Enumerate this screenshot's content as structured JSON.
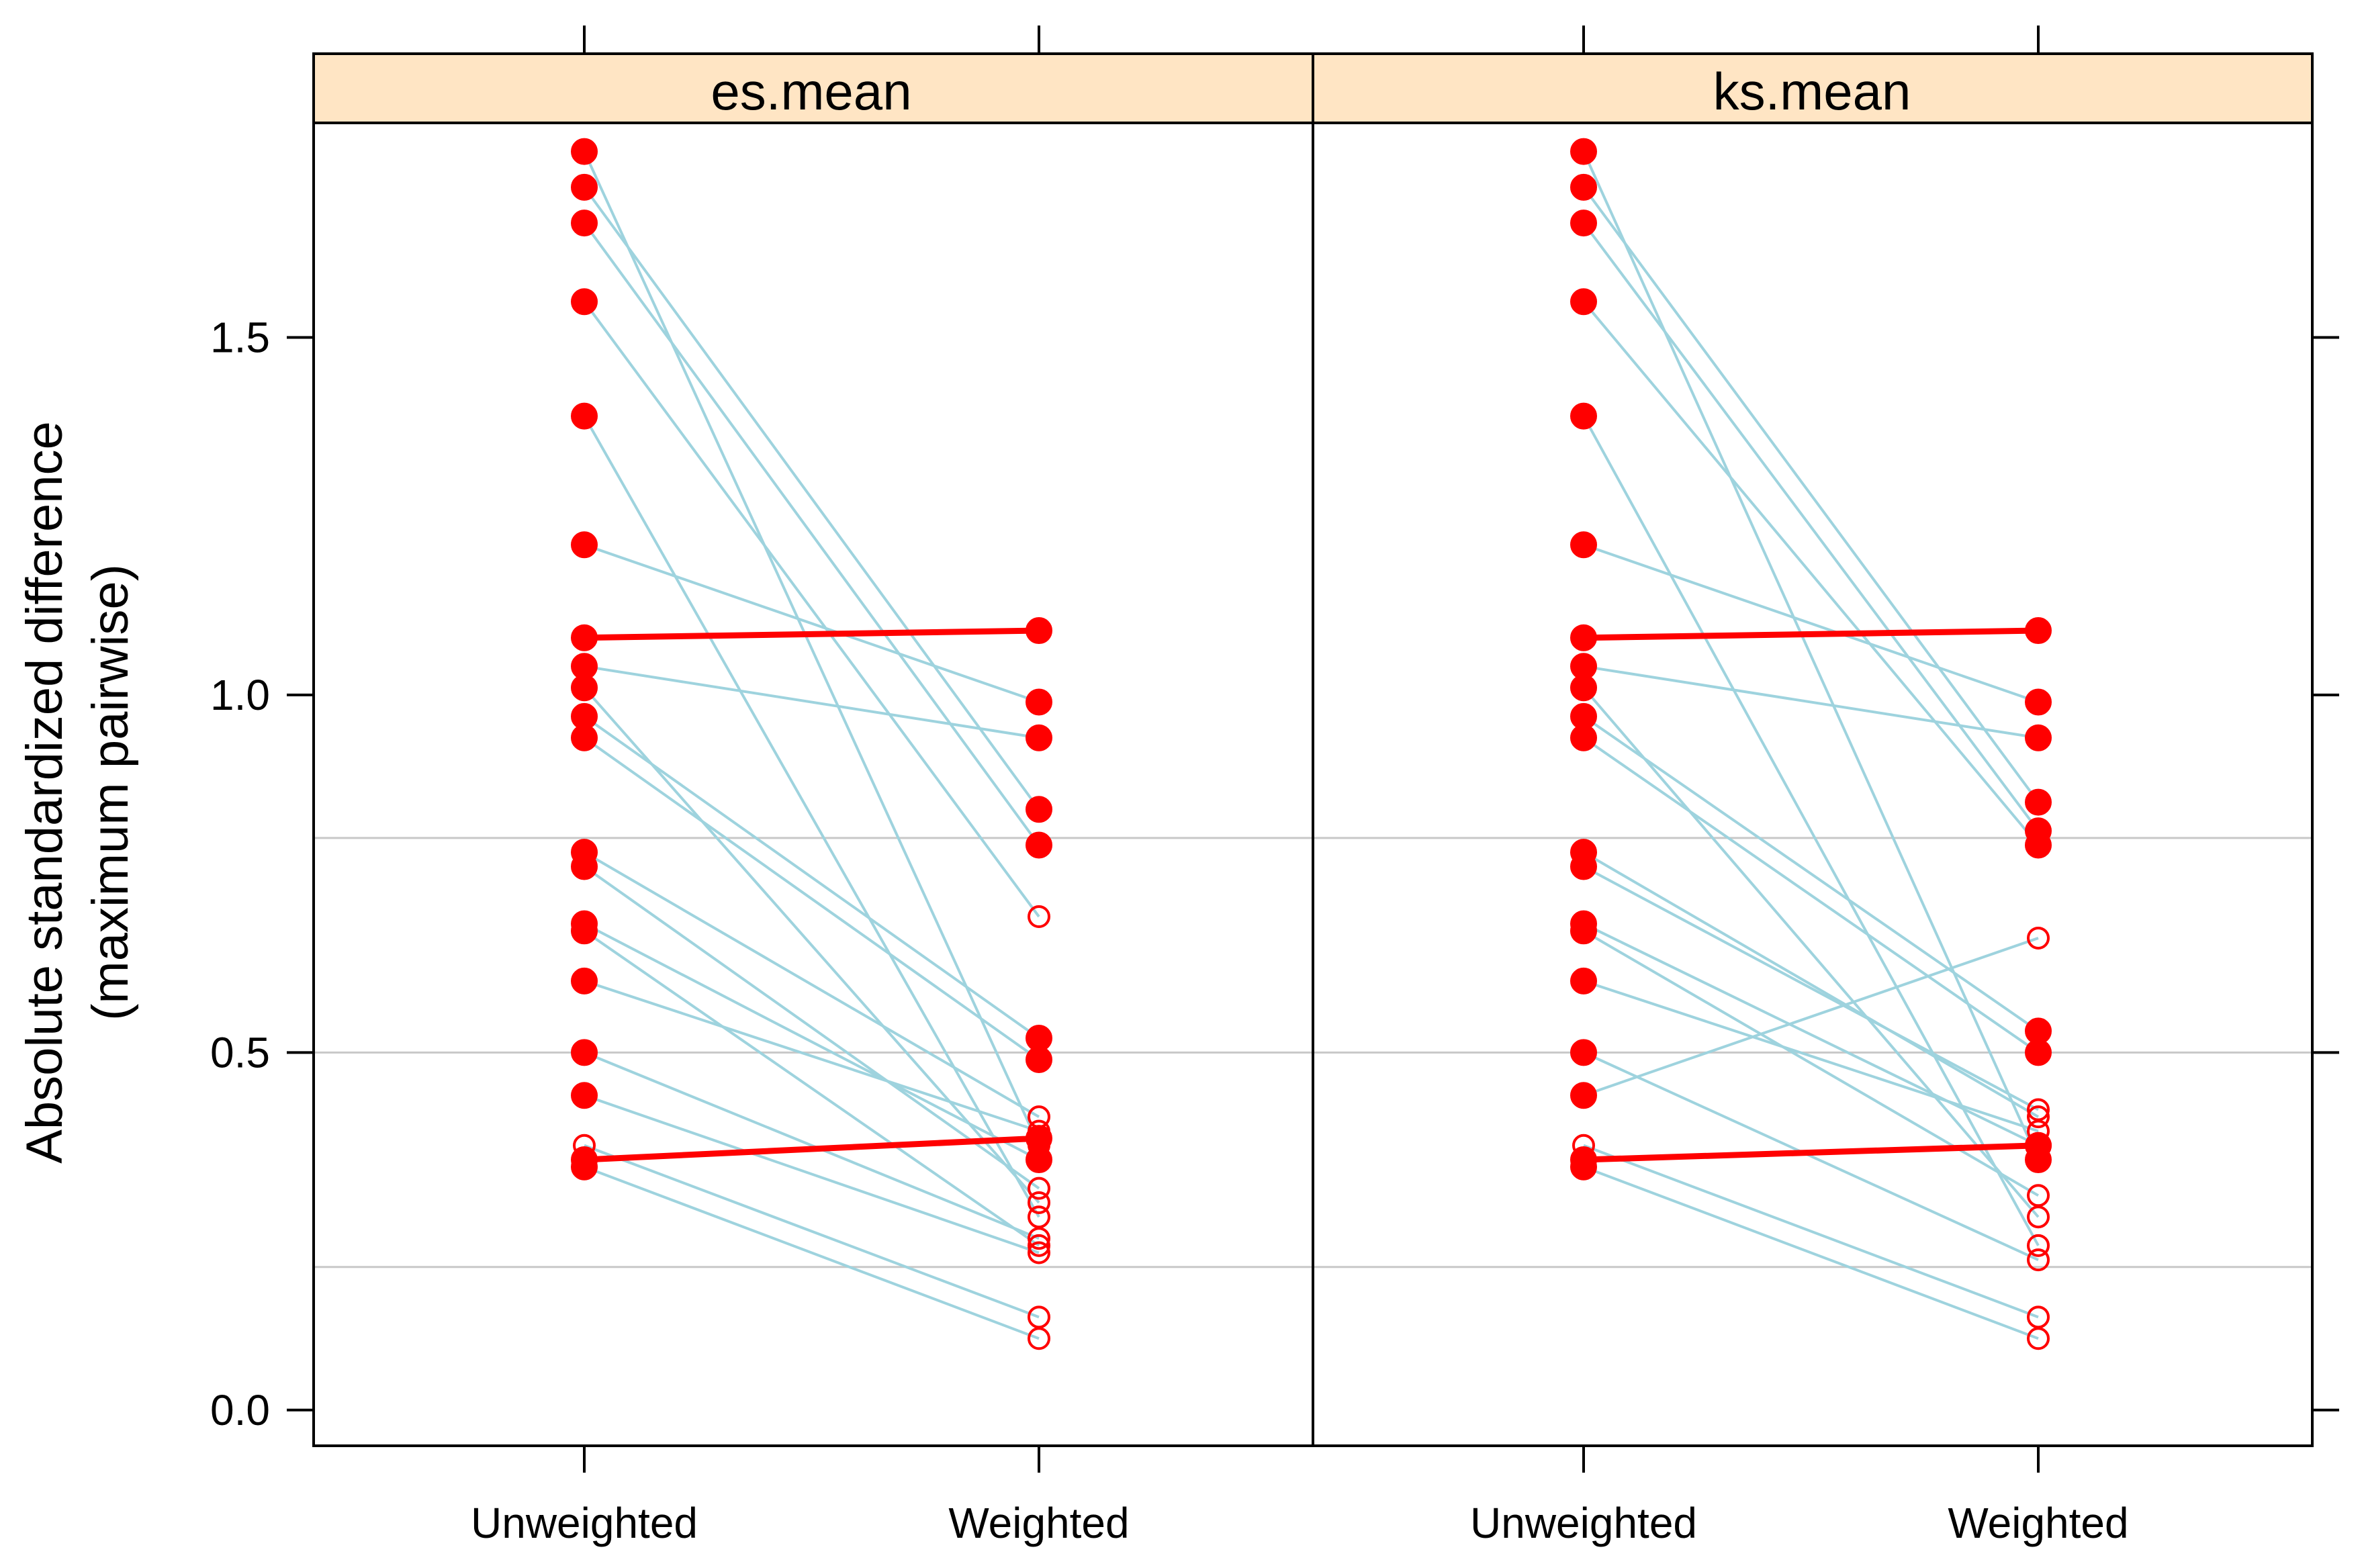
{
  "chart_data": {
    "type": "line",
    "ylabel_line1": "Absolute standardized difference",
    "ylabel_line2": "(maximum pairwise)",
    "ylim": [
      -0.05,
      1.8
    ],
    "yticks": [
      0.0,
      0.5,
      1.0,
      1.5
    ],
    "ytick_labels": [
      "0.0",
      "0.5",
      "1.0",
      "1.5"
    ],
    "reference_lines": [
      0.2,
      0.5,
      0.8
    ],
    "categories": [
      "Unweighted",
      "Weighted"
    ],
    "colors": {
      "strip": "#FFE5C4",
      "line": "#9ED3DE",
      "point": "#FF0000",
      "ref": "#C8C8C8"
    },
    "panels": [
      {
        "title": "es.mean",
        "pairs": [
          {
            "u": 1.76,
            "w": 0.37,
            "u_sig": true,
            "w_sig": false
          },
          {
            "u": 1.71,
            "w": 0.84,
            "u_sig": true,
            "w_sig": true
          },
          {
            "u": 1.66,
            "w": 0.79,
            "u_sig": true,
            "w_sig": true
          },
          {
            "u": 1.55,
            "w": 0.69,
            "u_sig": true,
            "w_sig": false
          },
          {
            "u": 1.39,
            "w": 0.27,
            "u_sig": true,
            "w_sig": false
          },
          {
            "u": 1.21,
            "w": 0.99,
            "u_sig": true,
            "w_sig": true
          },
          {
            "u": 1.08,
            "w": 1.09,
            "u_sig": true,
            "w_sig": true,
            "highlight": true
          },
          {
            "u": 1.04,
            "w": 0.94,
            "u_sig": true,
            "w_sig": true
          },
          {
            "u": 1.01,
            "w": 0.29,
            "u_sig": true,
            "w_sig": false
          },
          {
            "u": 0.97,
            "w": 0.52,
            "u_sig": true,
            "w_sig": true
          },
          {
            "u": 0.94,
            "w": 0.49,
            "u_sig": true,
            "w_sig": true
          },
          {
            "u": 0.78,
            "w": 0.41,
            "u_sig": true,
            "w_sig": false
          },
          {
            "u": 0.76,
            "w": 0.31,
            "u_sig": true,
            "w_sig": false
          },
          {
            "u": 0.68,
            "w": 0.35,
            "u_sig": true,
            "w_sig": true
          },
          {
            "u": 0.67,
            "w": 0.23,
            "u_sig": true,
            "w_sig": false
          },
          {
            "u": 0.6,
            "w": 0.39,
            "u_sig": true,
            "w_sig": false
          },
          {
            "u": 0.5,
            "w": 0.24,
            "u_sig": true,
            "w_sig": false
          },
          {
            "u": 0.44,
            "w": 0.22,
            "u_sig": true,
            "w_sig": false
          },
          {
            "u": 0.37,
            "w": 0.13,
            "u_sig": false,
            "w_sig": false
          },
          {
            "u": 0.35,
            "w": 0.38,
            "u_sig": true,
            "w_sig": true,
            "highlight": true
          },
          {
            "u": 0.34,
            "w": 0.1,
            "u_sig": true,
            "w_sig": false
          }
        ]
      },
      {
        "title": "ks.mean",
        "pairs": [
          {
            "u": 1.76,
            "w": 0.35,
            "u_sig": true,
            "w_sig": true
          },
          {
            "u": 1.71,
            "w": 0.85,
            "u_sig": true,
            "w_sig": true
          },
          {
            "u": 1.66,
            "w": 0.81,
            "u_sig": true,
            "w_sig": true
          },
          {
            "u": 1.55,
            "w": 0.79,
            "u_sig": true,
            "w_sig": true
          },
          {
            "u": 1.39,
            "w": 0.23,
            "u_sig": true,
            "w_sig": false
          },
          {
            "u": 1.21,
            "w": 0.99,
            "u_sig": true,
            "w_sig": true
          },
          {
            "u": 1.08,
            "w": 1.09,
            "u_sig": true,
            "w_sig": true,
            "highlight": true
          },
          {
            "u": 1.04,
            "w": 0.94,
            "u_sig": true,
            "w_sig": true
          },
          {
            "u": 1.01,
            "w": 0.27,
            "u_sig": true,
            "w_sig": false
          },
          {
            "u": 0.97,
            "w": 0.53,
            "u_sig": true,
            "w_sig": true
          },
          {
            "u": 0.94,
            "w": 0.5,
            "u_sig": true,
            "w_sig": true
          },
          {
            "u": 0.78,
            "w": 0.41,
            "u_sig": true,
            "w_sig": false
          },
          {
            "u": 0.76,
            "w": 0.42,
            "u_sig": true,
            "w_sig": false
          },
          {
            "u": 0.68,
            "w": 0.37,
            "u_sig": true,
            "w_sig": true
          },
          {
            "u": 0.67,
            "w": 0.3,
            "u_sig": true,
            "w_sig": false
          },
          {
            "u": 0.6,
            "w": 0.39,
            "u_sig": true,
            "w_sig": false
          },
          {
            "u": 0.5,
            "w": 0.21,
            "u_sig": true,
            "w_sig": false
          },
          {
            "u": 0.44,
            "w": 0.66,
            "u_sig": true,
            "w_sig": false
          },
          {
            "u": 0.37,
            "w": 0.13,
            "u_sig": false,
            "w_sig": false
          },
          {
            "u": 0.35,
            "w": 0.37,
            "u_sig": true,
            "w_sig": true,
            "highlight": true
          },
          {
            "u": 0.34,
            "w": 0.1,
            "u_sig": true,
            "w_sig": false
          }
        ]
      }
    ]
  }
}
